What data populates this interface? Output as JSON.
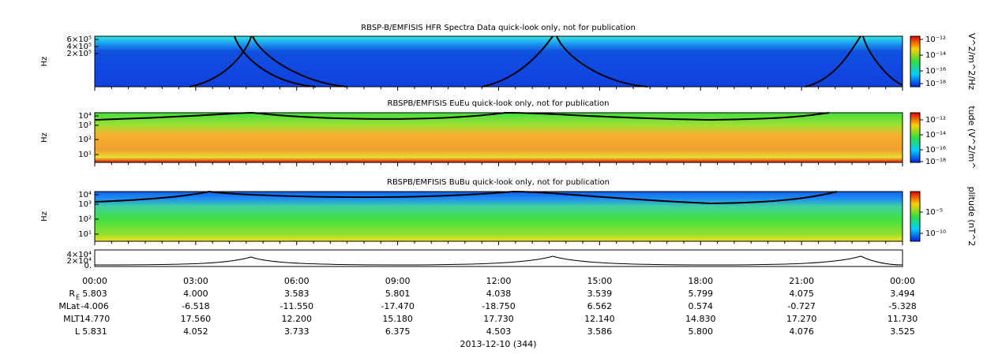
{
  "panels": [
    {
      "title": "RBSP-B/EMFISIS  HFR Spectra Data quick-look only, not for publication",
      "ylabel": "Hz",
      "yticks": [
        "6×10⁵",
        "4×10⁵",
        "2×10⁵"
      ],
      "colorbar_label": "V^2/m^2/Hz",
      "colorbar_ticks": [
        "10⁻¹²",
        "10⁻¹⁴",
        "10⁻¹⁶",
        "10⁻¹⁸"
      ]
    },
    {
      "title": "RBSPB/EMFISIS  EuEu quick-look only, not for publication",
      "ylabel": "Hz",
      "yticks": [
        "10⁴",
        "10³",
        "10²",
        "10¹"
      ],
      "colorbar_label": "tude (V^2/m^",
      "colorbar_ticks": [
        "10⁻¹²",
        "10⁻¹⁴",
        "10⁻¹⁶",
        "10⁻¹⁸"
      ]
    },
    {
      "title": "RBSPB/EMFISIS  BuBu quick-look only, not for publication",
      "ylabel": "Hz",
      "yticks": [
        "10⁴",
        "10³",
        "10²",
        "10¹"
      ],
      "colorbar_label": "plitude (nT^2",
      "colorbar_ticks": [
        "10⁻⁵",
        "10⁻¹⁰"
      ]
    }
  ],
  "line_panel": {
    "yticks": [
      "4×10⁴",
      "2×10⁴",
      "0."
    ]
  },
  "x_ticks": [
    "00:00",
    "03:00",
    "06:00",
    "09:00",
    "12:00",
    "15:00",
    "18:00",
    "21:00",
    "00:00"
  ],
  "ephemeris": [
    {
      "label": "R",
      "sub": "E",
      "values": [
        "5.803",
        "4.000",
        "3.583",
        "5.801",
        "4.038",
        "3.539",
        "5.799",
        "4.075",
        "3.494"
      ]
    },
    {
      "label": "MLat",
      "values": [
        "-4.006",
        "-6.518",
        "-11.550",
        "-17.470",
        "-18.750",
        "6.562",
        "0.574",
        "-0.727",
        "-5.328"
      ]
    },
    {
      "label": "MLT",
      "values": [
        "14.770",
        "17.560",
        "12.200",
        "15.180",
        "17.730",
        "12.140",
        "14.830",
        "17.270",
        "11.730"
      ]
    },
    {
      "label": "L",
      "values": [
        "5.831",
        "4.052",
        "3.733",
        "6.375",
        "4.503",
        "3.586",
        "5.800",
        "4.076",
        "3.525"
      ]
    }
  ],
  "date": "2013-12-10 (344)"
}
